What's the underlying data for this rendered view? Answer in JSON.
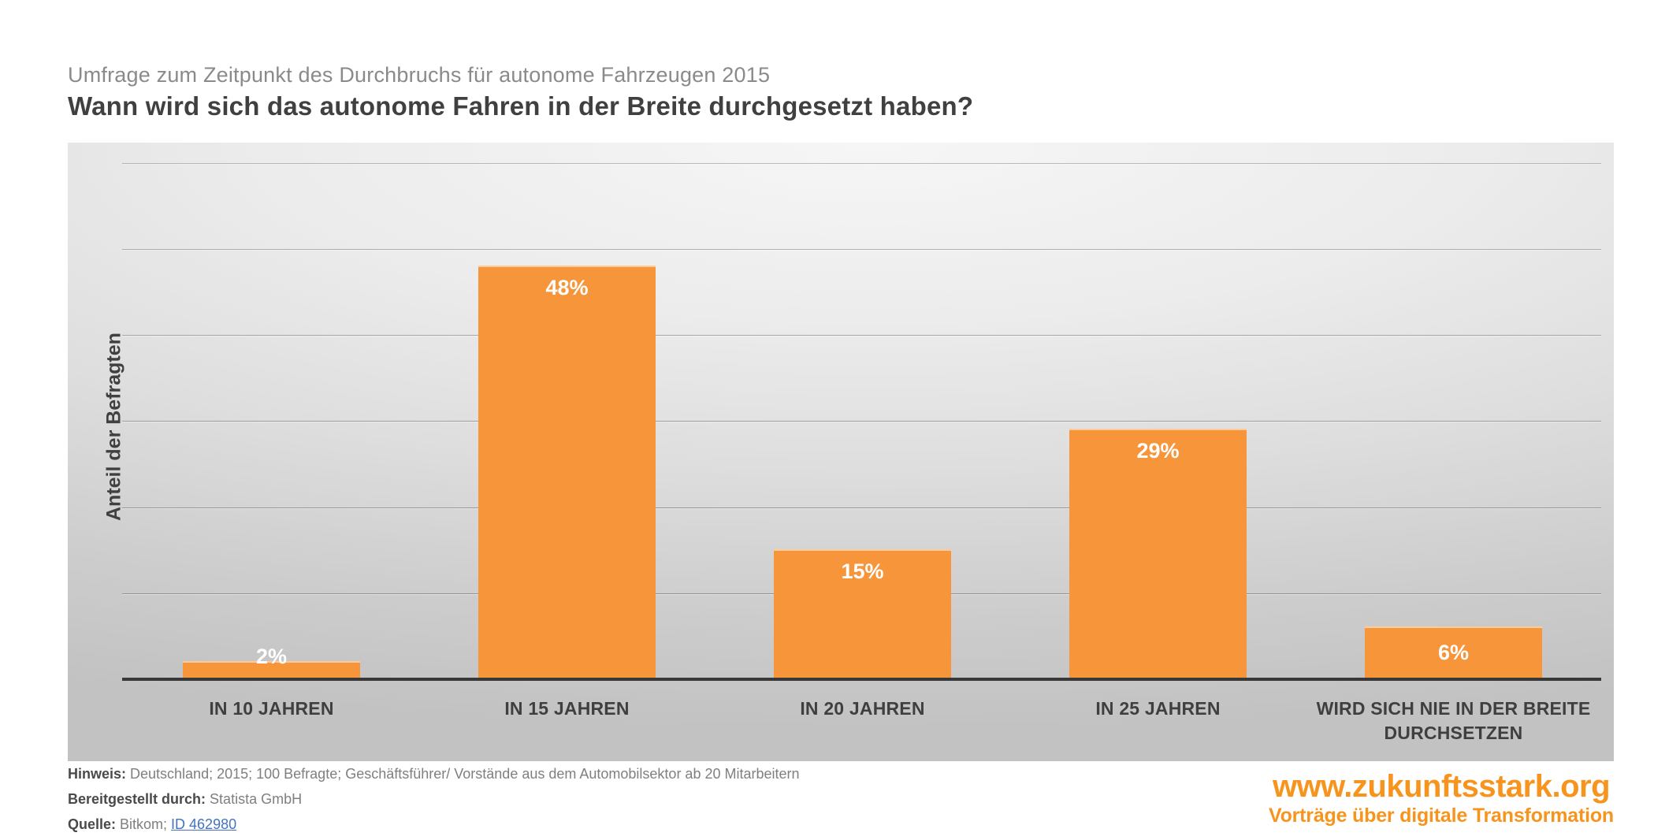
{
  "header": {
    "subtitle": "Umfrage zum Zeitpunkt des Durchbruchs für autonome Fahrzeugen 2015",
    "title": "Wann wird sich das autonome Fahren in der Breite durchgesetzt haben?"
  },
  "chart_data": {
    "type": "bar",
    "title": "Wann wird sich das autonome Fahren in der Breite durchgesetzt haben?",
    "categories": [
      "IN 10 JAHREN",
      "IN 15 JAHREN",
      "IN 20 JAHREN",
      "IN 25 JAHREN",
      "WIRD SICH NIE IN DER BREITE DURCHSETZEN"
    ],
    "values": [
      2,
      48,
      15,
      29,
      6
    ],
    "data_labels": [
      "2%",
      "48%",
      "15%",
      "29%",
      "6%"
    ],
    "xlabel": "",
    "ylabel": "Anteil der Befragten",
    "ylim": [
      0,
      62
    ],
    "gridline_percents": [
      10,
      20,
      30,
      40,
      50,
      60
    ],
    "grid": "on",
    "legend": "none",
    "bar_color": "#F6953A",
    "bar_label_color": "#FFFFFF",
    "plot_background": "gray gradient"
  },
  "colors": {
    "bar_orange": "#F6953A",
    "logo_orange": "#F7941E",
    "title_gray": "#404040",
    "subtitle_gray": "#8A8A8A",
    "axis_dark": "#383838",
    "link_blue": "#4472C4"
  },
  "footer": {
    "note_label": "Hinweis:",
    "note_text": " Deutschland; 2015; 100 Befragte; Geschäftsführer/ Vorstände aus dem Automobilsektor ab 20 Mitarbeitern",
    "provider_label": "Bereitgestellt durch:",
    "provider_text": " Statista GmbH",
    "source_label": "Quelle:",
    "source_text": " Bitkom; ",
    "source_link": "ID 462980"
  },
  "logo": {
    "url_text": "www.zukunftsstark.org",
    "tagline": "Vorträge über digitale Transformation"
  }
}
